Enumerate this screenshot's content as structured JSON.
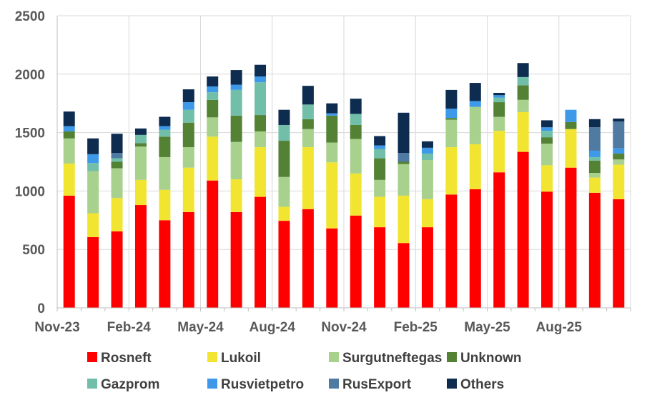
{
  "chart_data": {
    "type": "bar",
    "stacked": true,
    "title": "",
    "xlabel": "",
    "ylabel": "",
    "ylim": [
      0,
      2500
    ],
    "yticks": [
      0,
      500,
      1000,
      1500,
      2000,
      2500
    ],
    "grid": true,
    "legend_position": "bottom",
    "categories": [
      "Nov-23",
      "Dec-23",
      "Jan-24",
      "Feb-24",
      "Mar-24",
      "Apr-24",
      "May-24",
      "Jun-24",
      "Jul-24",
      "Aug-24",
      "Sep-24",
      "Oct-24",
      "Nov-24",
      "Dec-24",
      "Jan-25",
      "Feb-25",
      "Mar-25",
      "Apr-25",
      "May-25",
      "Jun-25",
      "Jul-25",
      "Aug-25",
      "Sep-25",
      "Oct-25"
    ],
    "xtick_labels": [
      "Nov-23",
      "Feb-24",
      "May-24",
      "Aug-24",
      "Nov-24",
      "Feb-25",
      "May-25",
      "Aug-25"
    ],
    "series": [
      {
        "name": "Rosneft",
        "color": "#ff0000",
        "values": [
          960,
          605,
          655,
          880,
          750,
          820,
          1090,
          820,
          950,
          745,
          845,
          680,
          790,
          690,
          555,
          690,
          970,
          1015,
          1160,
          1335,
          995,
          1200,
          985,
          930
        ]
      },
      {
        "name": "Lukoil",
        "color": "#f2e531",
        "values": [
          275,
          205,
          285,
          215,
          260,
          380,
          375,
          280,
          425,
          120,
          530,
          565,
          360,
          260,
          405,
          240,
          405,
          385,
          355,
          340,
          225,
          330,
          130,
          295
        ]
      },
      {
        "name": "Surgutneftegas",
        "color": "#a9d18e",
        "values": [
          215,
          360,
          255,
          285,
          280,
          175,
          165,
          320,
          135,
          255,
          155,
          170,
          295,
          145,
          270,
          335,
          235,
          320,
          120,
          105,
          185,
          0,
          40,
          45
        ]
      },
      {
        "name": "Unknown",
        "color": "#548235",
        "values": [
          60,
          0,
          55,
          30,
          175,
          210,
          150,
          225,
          140,
          310,
          85,
          230,
          120,
          185,
          20,
          0,
          15,
          0,
          125,
          125,
          55,
          60,
          105,
          50
        ]
      },
      {
        "name": "Gazprom",
        "color": "#71bfa9",
        "values": [
          0,
          70,
          30,
          70,
          60,
          110,
          65,
          220,
          280,
          135,
          125,
          0,
          95,
          80,
          0,
          55,
          0,
          0,
          40,
          70,
          55,
          0,
          30,
          0
        ]
      },
      {
        "name": "Rusvietpetro",
        "color": "#3e99e8",
        "values": [
          45,
          75,
          0,
          0,
          30,
          65,
          50,
          45,
          50,
          0,
          0,
          20,
          0,
          30,
          0,
          50,
          80,
          50,
          20,
          0,
          30,
          105,
          55,
          45
        ]
      },
      {
        "name": "RusExport",
        "color": "#4f7ba3",
        "values": [
          0,
          0,
          45,
          0,
          0,
          0,
          0,
          0,
          0,
          0,
          0,
          0,
          0,
          0,
          75,
          0,
          0,
          0,
          0,
          0,
          0,
          0,
          200,
          230
        ]
      },
      {
        "name": "Others",
        "color": "#0d2c4f",
        "values": [
          125,
          135,
          165,
          55,
          80,
          110,
          85,
          125,
          100,
          130,
          160,
          85,
          130,
          80,
          345,
          55,
          160,
          155,
          20,
          120,
          60,
          0,
          70,
          25
        ]
      }
    ]
  }
}
